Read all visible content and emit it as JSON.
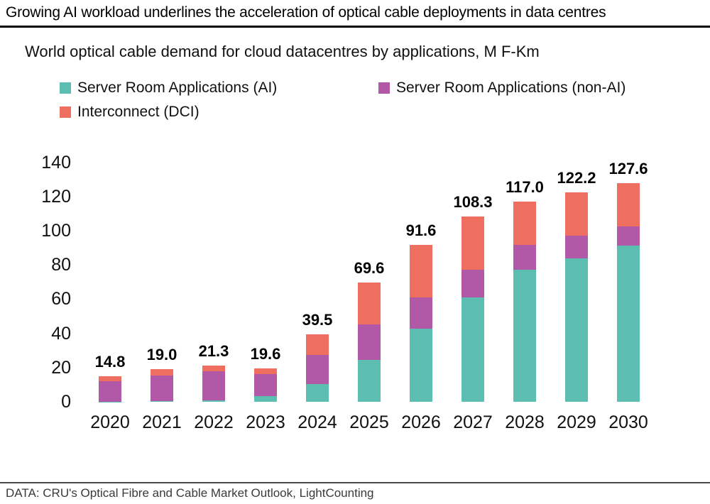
{
  "header": {
    "title": "Growing AI workload underlines the acceleration of optical cable deployments in data centres"
  },
  "subtitle": "World optical cable demand for cloud datacentres by applications, M F-Km",
  "footer": {
    "source": "DATA: CRU's Optical Fibre and Cable Market Outlook, LightCounting"
  },
  "colors": {
    "ai": "#5CBDB1",
    "non_ai": "#B158A6",
    "dci": "#EE6F60"
  },
  "chart_data": {
    "type": "bar",
    "stacked": true,
    "title": "World optical cable demand for cloud datacentres by applications, M F-Km",
    "xlabel": "",
    "ylabel": "M F-Km",
    "ylim": [
      0,
      140
    ],
    "ytick_step": 20,
    "grid": false,
    "legend_position": "top-left",
    "categories": [
      "2020",
      "2021",
      "2022",
      "2023",
      "2024",
      "2025",
      "2026",
      "2027",
      "2028",
      "2029",
      "2030"
    ],
    "series": [
      {
        "name": "Server Room Applications (AI)",
        "color": "#5CBDB1",
        "values": [
          0.2,
          0.4,
          1.0,
          3.3,
          10.2,
          24.3,
          42.8,
          61.0,
          77.0,
          84.0,
          91.3
        ]
      },
      {
        "name": "Server Room Applications (non-AI)",
        "color": "#B158A6",
        "values": [
          11.7,
          15.0,
          17.0,
          13.0,
          17.2,
          21.0,
          18.3,
          16.1,
          14.6,
          13.0,
          11.3
        ]
      },
      {
        "name": "Interconnect (DCI)",
        "color": "#EE6F60",
        "values": [
          2.9,
          3.6,
          3.3,
          3.3,
          12.1,
          24.3,
          30.5,
          31.2,
          25.4,
          25.2,
          25.0
        ]
      }
    ],
    "totals_display": [
      "14.8",
      "19.0",
      "21.3",
      "19.6",
      "39.5",
      "69.6",
      "91.6",
      "108.3",
      "117.0",
      "122.2",
      "127.6"
    ]
  }
}
